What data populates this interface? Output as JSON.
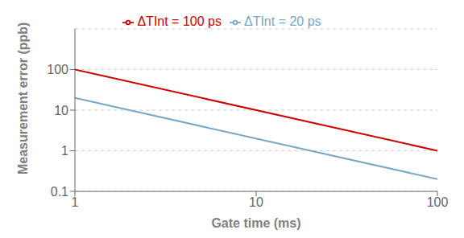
{
  "chart_data": {
    "type": "line",
    "x": [
      1,
      100
    ],
    "series": [
      {
        "name": "ΔTInt = 100 ps",
        "color": "#cc0000",
        "values": [
          100,
          1
        ]
      },
      {
        "name": "ΔTInt = 20 ps",
        "color": "#7aa6c8",
        "values": [
          20,
          0.2
        ]
      }
    ],
    "xlabel": "Gate time (ms)",
    "ylabel": "Measurement error (ppb)",
    "xlim": [
      1,
      100
    ],
    "ylim": [
      0.1,
      1000
    ],
    "xticks": [
      1,
      10,
      100
    ],
    "yticks": [
      0.1,
      1,
      10,
      100
    ],
    "log": true,
    "grid": "y",
    "legend": "top"
  }
}
